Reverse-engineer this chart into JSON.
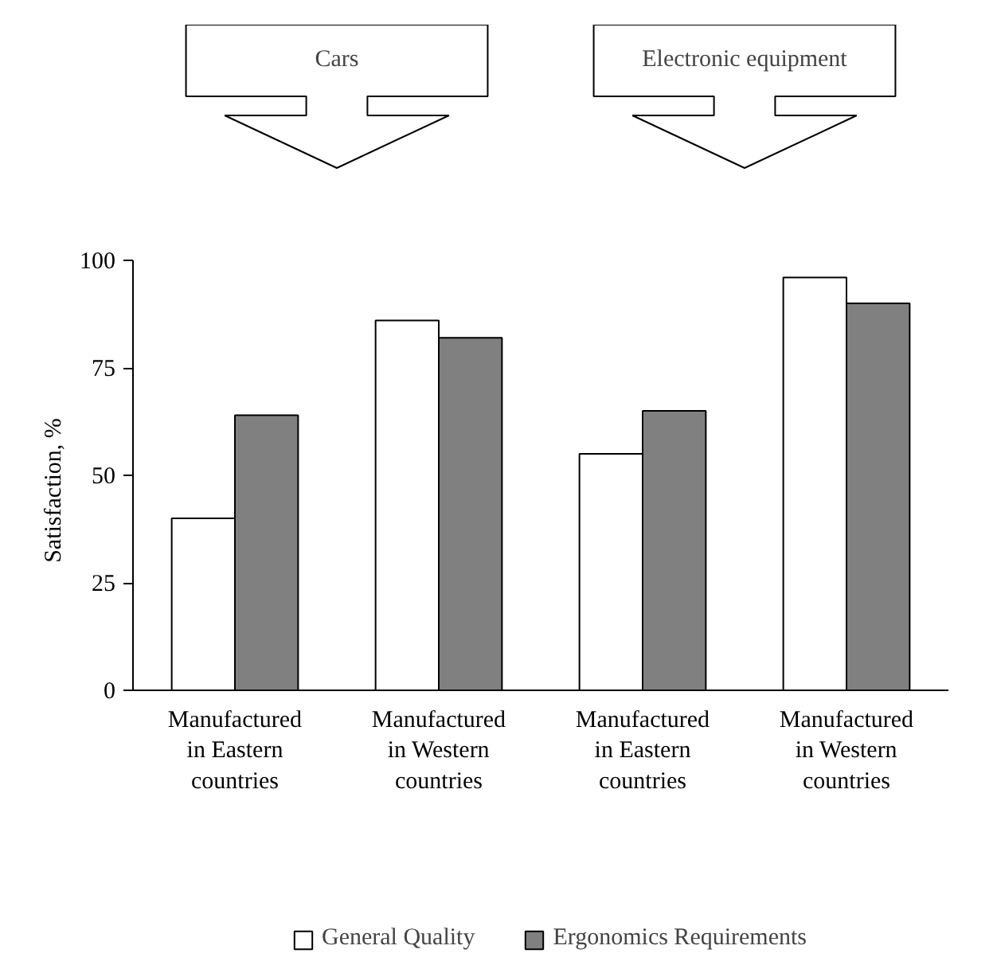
{
  "chart_data": {
    "type": "bar",
    "ylabel": "Satisfaction, %",
    "categories": [
      "Manufactured in Eastern countries",
      "Manufactured in Western countries",
      "Manufactured in Eastern countries",
      "Manufactured in Western countries"
    ],
    "series": [
      {
        "name": "General Quality",
        "color": "#ffffff",
        "values": [
          40,
          86,
          55,
          96
        ]
      },
      {
        "name": "Ergonomics Requirements",
        "color": "#808080",
        "values": [
          64,
          82,
          65,
          90
        ]
      }
    ],
    "ylim": [
      0,
      100
    ],
    "yticks": [
      0,
      25,
      50,
      75,
      100
    ],
    "grid": false,
    "legend": "bottom",
    "annotations": [
      "Cars",
      "Electronic equipment"
    ]
  }
}
